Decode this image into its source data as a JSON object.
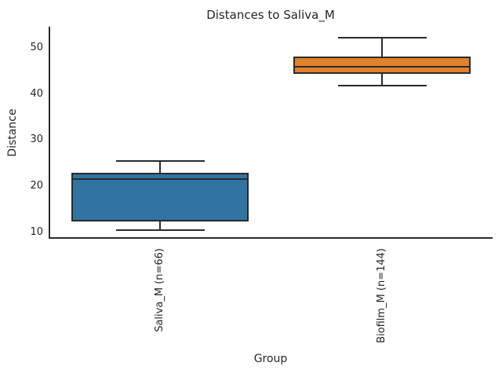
{
  "chart_data": {
    "type": "boxplot",
    "title": "Distances to Saliva_M",
    "xlabel": "Group",
    "ylabel": "Distance",
    "ylim": [
      8.6,
      54.6
    ],
    "yticks": [
      10,
      20,
      30,
      40,
      50
    ],
    "grid": false,
    "legend": "none",
    "background_color": "#ffffff",
    "line_color": "#2b2b2b",
    "categories": [
      "Saliva_M (n=66)",
      "Biofilm_M (n=144)"
    ],
    "series": [
      {
        "name": "Saliva_M (n=66)",
        "id": "saliva_m",
        "n": 66,
        "color": "#3274a1",
        "whisker_low": 10.4,
        "q1": 12.6,
        "median": 21.5,
        "q3": 22.7,
        "whisker_high": 25.5
      },
      {
        "name": "Biofilm_M (n=144)",
        "id": "biofilm_m",
        "n": 144,
        "color": "#e1812c",
        "whisker_low": 41.8,
        "q1": 44.5,
        "median": 45.9,
        "q3": 47.9,
        "whisker_high": 52.2
      }
    ]
  }
}
